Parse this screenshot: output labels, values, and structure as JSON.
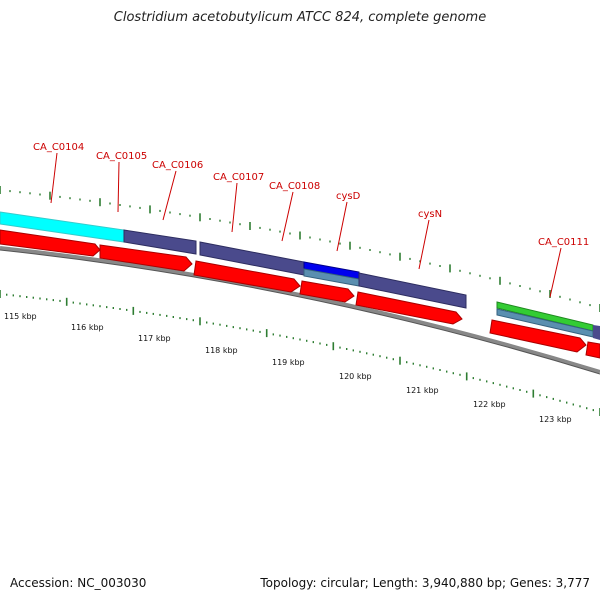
{
  "title": "Clostridium acetobutylicum ATCC 824, complete genome",
  "footer": {
    "accession": "Accession: NC_003030",
    "summary": "Topology: circular; Length: 3,940,880 bp; Genes: 3,777"
  },
  "colors": {
    "gene_label": "#cc0000",
    "cds": "#ff0000",
    "feature_purple": "#4a4a8c",
    "feature_cyan": "#00ffff",
    "feature_blue": "#0000ee",
    "feature_steel": "#5a8fb0",
    "feature_green": "#33cc33",
    "ticks": "#2e7d32",
    "backbone": "#888888"
  },
  "gene_labels": [
    "CA_C0104",
    "CA_C0105",
    "CA_C0106",
    "CA_C0107",
    "CA_C0108",
    "cysD",
    "cysN",
    "CA_C0111"
  ],
  "scale_labels": [
    "115 kbp",
    "116 kbp",
    "117 kbp",
    "118 kbp",
    "119 kbp",
    "120 kbp",
    "121 kbp",
    "122 kbp",
    "123 kbp"
  ]
}
